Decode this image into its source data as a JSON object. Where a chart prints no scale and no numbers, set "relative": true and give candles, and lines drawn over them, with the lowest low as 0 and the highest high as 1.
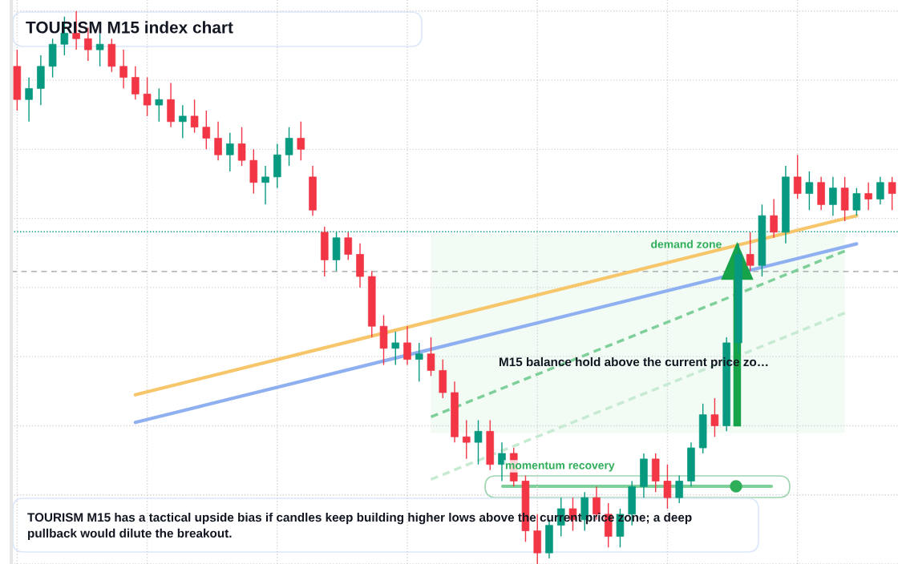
{
  "chart_data": {
    "type": "candlestick",
    "title": "TOURISM M15 index chart",
    "relative": true,
    "grid": true,
    "colors": [
      "#f23645",
      "#089981",
      "#089981",
      "#089981",
      "#089981",
      "#f23645",
      "#f23645",
      "#089981",
      "#f23645",
      "#f23645",
      "#f23645",
      "#f23645",
      "#089981",
      "#f23645",
      "#089981",
      "#f23645",
      "#f23645",
      "#f23645",
      "#089981",
      "#f23645",
      "#f23645",
      "#089981",
      "#089981",
      "#089981",
      "#f23645",
      "#f23645",
      "#f23645",
      "#089981",
      "#f23645",
      "#f23645",
      "#f23645",
      "#f23645",
      "#089981",
      "#f23645",
      "#089981",
      "#f23645",
      "#f23645",
      "#f23645",
      "#f23645",
      "#089981",
      "#f23645",
      "#089981",
      "#f23645",
      "#f23645",
      "#f23645",
      "#089981",
      "#089981",
      "#f23645",
      "#089981",
      "#f23645",
      "#f23645",
      "#089981",
      "#089981",
      "#089981",
      "#f23645",
      "#f23645",
      "#089981",
      "#089981",
      "#089981",
      "#f23645",
      "#089981",
      "#089981",
      "#f23645",
      "#089981",
      "#f23645",
      "#089981",
      "#f23645",
      "#089981",
      "#f23645",
      "#089981",
      "#f23645",
      "#089981",
      "#f23645",
      "#089981",
      "#f23645"
    ],
    "categories": [
      null,
      null,
      null,
      null,
      null,
      null,
      null,
      null,
      null,
      null,
      null,
      null,
      null,
      null,
      null,
      null,
      null,
      null,
      null,
      null,
      null,
      null,
      null,
      null,
      null,
      null,
      null,
      null,
      null,
      null,
      null,
      null,
      null,
      null,
      null,
      null,
      null,
      null,
      null,
      null,
      null,
      null,
      null,
      null,
      null,
      null,
      null,
      null,
      null,
      null,
      null,
      null,
      null,
      null,
      null,
      null,
      null,
      null,
      null,
      null,
      null,
      null,
      null,
      null,
      null,
      null,
      null,
      null,
      null,
      null,
      null,
      null,
      null,
      null,
      null
    ],
    "ohlc": [
      [
        0.9,
        0.93,
        0.82,
        0.84
      ],
      [
        0.84,
        0.88,
        0.8,
        0.86
      ],
      [
        0.86,
        0.92,
        0.83,
        0.9
      ],
      [
        0.9,
        0.95,
        0.88,
        0.94
      ],
      [
        0.94,
        0.99,
        0.92,
        0.96
      ],
      [
        0.96,
        1.0,
        0.93,
        0.95
      ],
      [
        0.95,
        0.97,
        0.91,
        0.93
      ],
      [
        0.93,
        0.96,
        0.9,
        0.94
      ],
      [
        0.94,
        0.95,
        0.89,
        0.9
      ],
      [
        0.9,
        0.93,
        0.86,
        0.88
      ],
      [
        0.88,
        0.9,
        0.84,
        0.85
      ],
      [
        0.85,
        0.88,
        0.81,
        0.83
      ],
      [
        0.83,
        0.86,
        0.8,
        0.84
      ],
      [
        0.84,
        0.87,
        0.79,
        0.8
      ],
      [
        0.8,
        0.83,
        0.77,
        0.81
      ],
      [
        0.81,
        0.84,
        0.78,
        0.79
      ],
      [
        0.79,
        0.82,
        0.75,
        0.77
      ],
      [
        0.77,
        0.8,
        0.73,
        0.74
      ],
      [
        0.74,
        0.78,
        0.71,
        0.76
      ],
      [
        0.76,
        0.79,
        0.72,
        0.73
      ],
      [
        0.73,
        0.75,
        0.67,
        0.69
      ],
      [
        0.69,
        0.72,
        0.65,
        0.7
      ],
      [
        0.7,
        0.76,
        0.68,
        0.74
      ],
      [
        0.74,
        0.79,
        0.72,
        0.77
      ],
      [
        0.77,
        0.8,
        0.73,
        0.75
      ],
      [
        0.7,
        0.72,
        0.63,
        0.64
      ],
      [
        0.6,
        0.61,
        0.52,
        0.55
      ],
      [
        0.55,
        0.6,
        0.53,
        0.59
      ],
      [
        0.59,
        0.6,
        0.55,
        0.56
      ],
      [
        0.56,
        0.58,
        0.5,
        0.52
      ],
      [
        0.52,
        0.53,
        0.41,
        0.43
      ],
      [
        0.43,
        0.45,
        0.36,
        0.39
      ],
      [
        0.39,
        0.42,
        0.36,
        0.4
      ],
      [
        0.4,
        0.43,
        0.36,
        0.37
      ],
      [
        0.37,
        0.4,
        0.33,
        0.38
      ],
      [
        0.38,
        0.41,
        0.34,
        0.35
      ],
      [
        0.35,
        0.37,
        0.3,
        0.31
      ],
      [
        0.31,
        0.33,
        0.22,
        0.23
      ],
      [
        0.23,
        0.26,
        0.19,
        0.22
      ],
      [
        0.22,
        0.26,
        0.18,
        0.24
      ],
      [
        0.24,
        0.26,
        0.17,
        0.18
      ],
      [
        0.18,
        0.22,
        0.15,
        0.2
      ],
      [
        0.2,
        0.21,
        0.14,
        0.15
      ],
      [
        0.15,
        0.16,
        0.04,
        0.06
      ],
      [
        0.06,
        0.09,
        0.0,
        0.02
      ],
      [
        0.02,
        0.08,
        0.01,
        0.07
      ],
      [
        0.07,
        0.12,
        0.05,
        0.1
      ],
      [
        0.1,
        0.12,
        0.06,
        0.08
      ],
      [
        0.08,
        0.13,
        0.06,
        0.12
      ],
      [
        0.12,
        0.14,
        0.08,
        0.09
      ],
      [
        0.09,
        0.11,
        0.03,
        0.05
      ],
      [
        0.05,
        0.1,
        0.03,
        0.09
      ],
      [
        0.09,
        0.15,
        0.07,
        0.14
      ],
      [
        0.14,
        0.2,
        0.12,
        0.19
      ],
      [
        0.19,
        0.2,
        0.13,
        0.15
      ],
      [
        0.15,
        0.18,
        0.1,
        0.12
      ],
      [
        0.12,
        0.16,
        0.11,
        0.15
      ],
      [
        0.15,
        0.22,
        0.14,
        0.21
      ],
      [
        0.21,
        0.29,
        0.2,
        0.27
      ],
      [
        0.27,
        0.3,
        0.23,
        0.25
      ],
      [
        0.25,
        0.41,
        0.24,
        0.4
      ],
      [
        0.4,
        0.58,
        0.38,
        0.56
      ],
      [
        0.56,
        0.6,
        0.53,
        0.54
      ],
      [
        0.54,
        0.65,
        0.52,
        0.63
      ],
      [
        0.63,
        0.66,
        0.59,
        0.6
      ],
      [
        0.6,
        0.72,
        0.58,
        0.7
      ],
      [
        0.7,
        0.74,
        0.66,
        0.67
      ],
      [
        0.67,
        0.71,
        0.64,
        0.69
      ],
      [
        0.69,
        0.7,
        0.64,
        0.65
      ],
      [
        0.65,
        0.7,
        0.63,
        0.68
      ],
      [
        0.68,
        0.7,
        0.62,
        0.64
      ],
      [
        0.64,
        0.68,
        0.63,
        0.67
      ],
      [
        0.67,
        0.69,
        0.64,
        0.66
      ],
      [
        0.66,
        0.7,
        0.65,
        0.69
      ],
      [
        0.69,
        0.7,
        0.64,
        0.67
      ]
    ],
    "series": [
      {
        "type": "line",
        "color": "#f7c66b",
        "values": [
          null,
          null,
          null,
          null,
          null,
          null,
          null,
          null,
          null,
          null,
          0.306,
          null,
          null,
          null,
          null,
          null,
          null,
          null,
          null,
          null,
          null,
          null,
          null,
          null,
          null,
          null,
          null,
          null,
          null,
          null,
          null,
          null,
          null,
          null,
          null,
          null,
          null,
          null,
          null,
          null,
          null,
          null,
          null,
          null,
          null,
          null,
          null,
          null,
          null,
          null,
          null,
          null,
          null,
          null,
          null,
          null,
          null,
          null,
          null,
          null,
          null,
          null,
          null,
          null,
          null,
          null,
          null,
          null,
          null,
          null,
          null,
          0.63,
          null,
          null,
          null
        ]
      },
      {
        "type": "line",
        "color": "#8fb0f0",
        "values": [
          null,
          null,
          null,
          null,
          null,
          null,
          null,
          null,
          null,
          null,
          0.256,
          null,
          null,
          null,
          null,
          null,
          null,
          null,
          null,
          null,
          null,
          null,
          null,
          null,
          null,
          null,
          null,
          null,
          null,
          null,
          null,
          null,
          null,
          null,
          null,
          null,
          null,
          null,
          null,
          null,
          null,
          null,
          null,
          null,
          null,
          null,
          null,
          null,
          null,
          null,
          null,
          null,
          null,
          null,
          null,
          null,
          null,
          null,
          null,
          null,
          null,
          null,
          null,
          null,
          null,
          null,
          null,
          null,
          null,
          null,
          null,
          0.579,
          null,
          null,
          null
        ]
      },
      {
        "type": "line",
        "color": "#7fcf9a",
        "line_style": "dashed",
        "values": [
          null,
          null,
          null,
          null,
          null,
          null,
          null,
          null,
          null,
          null,
          null,
          null,
          null,
          null,
          null,
          null,
          null,
          null,
          null,
          null,
          null,
          null,
          null,
          null,
          null,
          null,
          null,
          null,
          null,
          null,
          null,
          null,
          null,
          null,
          null,
          0.266,
          null,
          null,
          null,
          null,
          null,
          null,
          null,
          null,
          null,
          null,
          null,
          null,
          null,
          null,
          null,
          null,
          null,
          null,
          null,
          null,
          null,
          null,
          null,
          null,
          null,
          null,
          null,
          null,
          null,
          null,
          null,
          null,
          null,
          null,
          0.566,
          null,
          null,
          null,
          null
        ]
      },
      {
        "type": "line",
        "color": "#c6ead2",
        "line_style": "dashed",
        "values": [
          null,
          null,
          null,
          null,
          null,
          null,
          null,
          null,
          null,
          null,
          null,
          null,
          null,
          null,
          null,
          null,
          null,
          null,
          null,
          null,
          null,
          null,
          null,
          null,
          null,
          null,
          null,
          null,
          null,
          null,
          null,
          null,
          null,
          null,
          null,
          0.153,
          null,
          null,
          null,
          null,
          null,
          null,
          null,
          null,
          null,
          null,
          null,
          null,
          null,
          null,
          null,
          null,
          null,
          null,
          null,
          null,
          null,
          null,
          null,
          null,
          null,
          null,
          null,
          null,
          null,
          null,
          null,
          null,
          null,
          null,
          0.454,
          null,
          null,
          null,
          null
        ]
      }
    ],
    "ref_lines": [
      {
        "axis": "y",
        "value": 0.601,
        "color": "#089981",
        "line_style": "dotted"
      },
      {
        "axis": "y",
        "value": 0.529,
        "color": "#9e9e9e",
        "line_style": "dashed"
      }
    ],
    "bands": [
      {
        "axis": "y",
        "from": 0.237,
        "to": 0.598,
        "label": "demand zone",
        "color": "#f3fbf5"
      }
    ],
    "annotations": [
      "M15 balance hold above the current price zo…",
      "momentum recovery",
      "TOURISM M15 has a tactical upside bias if candles keep building higher lows above the current price zone; a deep pullback would dilute the breakout."
    ]
  }
}
